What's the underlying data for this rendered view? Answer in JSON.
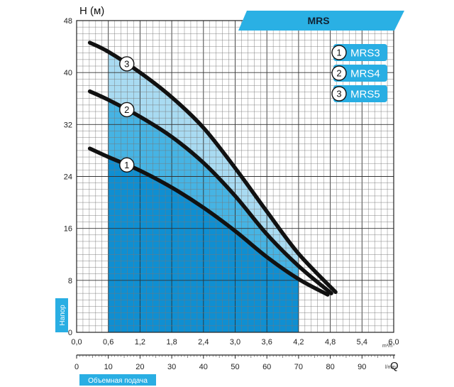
{
  "chart_data": {
    "type": "line",
    "title": "MRS",
    "ylabel": "H (м)",
    "side_label": "Напор",
    "xlabel_bottom": "Объемная подача",
    "x_axis_end_label": "Q",
    "x_unit_top": "m³/h",
    "x_unit_bottom": "l/min",
    "ylim": [
      0,
      48
    ],
    "xlim": [
      0,
      6.0
    ],
    "grid": true,
    "legend_position": "top-right",
    "y_ticks": [
      "0",
      "8",
      "16",
      "24",
      "32",
      "40",
      "48"
    ],
    "x_ticks_m3h": [
      "0,0",
      "0,6",
      "1,2",
      "1,8",
      "2,4",
      "3,0",
      "3,6",
      "4,2",
      "4,8",
      "5,4",
      "6,0"
    ],
    "x_ticks_lmin": [
      "0",
      "10",
      "20",
      "30",
      "40",
      "50",
      "60",
      "70",
      "80",
      "90",
      "100"
    ],
    "shaded_range": [
      0.6,
      4.2
    ],
    "series": [
      {
        "name": "MRS3",
        "marker": "1",
        "x": [
          0.25,
          0.6,
          1.2,
          1.8,
          2.4,
          3.0,
          3.6,
          4.2,
          4.75
        ],
        "y": [
          28.3,
          27.0,
          24.9,
          22.3,
          19.2,
          15.6,
          11.6,
          8.2,
          5.8
        ]
      },
      {
        "name": "MRS4",
        "marker": "2",
        "x": [
          0.25,
          0.6,
          1.2,
          1.8,
          2.4,
          3.0,
          3.6,
          4.2,
          4.82
        ],
        "y": [
          37.1,
          35.8,
          33.2,
          30.1,
          26.1,
          21.0,
          15.1,
          10.2,
          6.0
        ]
      },
      {
        "name": "MRS5",
        "marker": "3",
        "x": [
          0.25,
          0.6,
          1.2,
          1.8,
          2.4,
          3.0,
          3.6,
          4.2,
          4.9
        ],
        "y": [
          44.6,
          43.2,
          40.0,
          36.2,
          31.5,
          25.3,
          18.6,
          12.1,
          6.2
        ]
      }
    ],
    "colors": {
      "light_fill": "#a9dbf2",
      "mid_fill": "#46b4e4",
      "dark_fill": "#0f8fd2",
      "line": "#111111",
      "label_bg": "#29aee3",
      "banner": "#2ab0e4"
    }
  }
}
